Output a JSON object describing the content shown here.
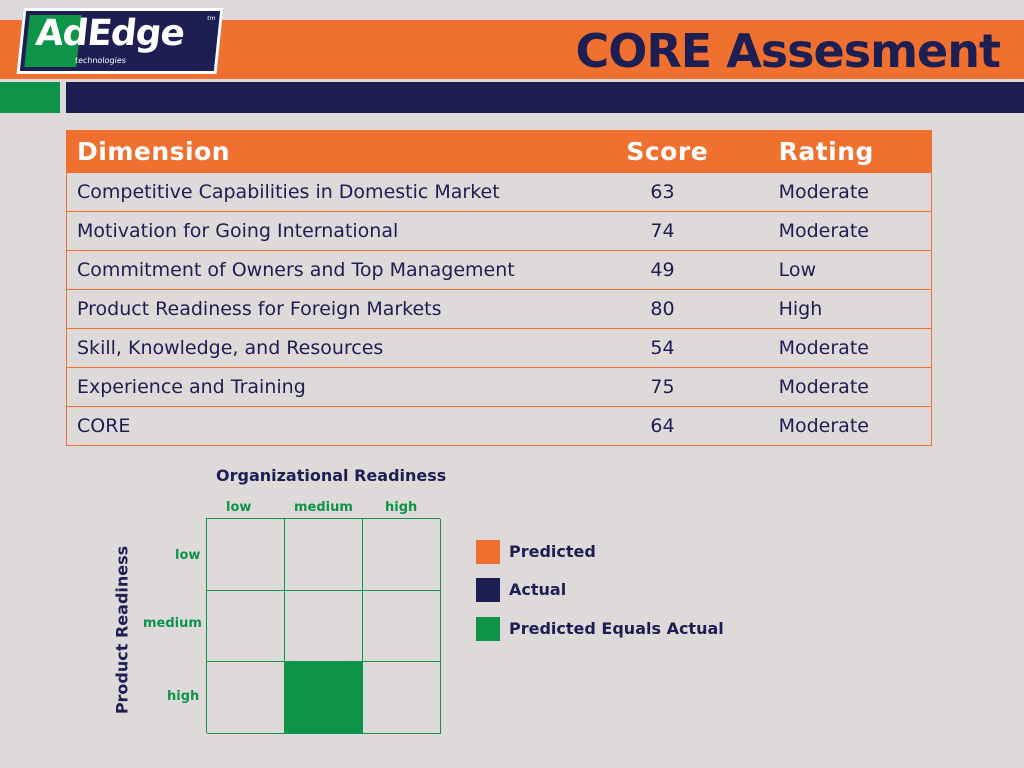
{
  "colors": {
    "background": "#dedad9",
    "orange": "#f07030",
    "navy": "#1d1e52",
    "green": "#0e9448"
  },
  "logo": {
    "name": "AdEdge",
    "subtitle": "technologies",
    "tm": "tm"
  },
  "header": {
    "title": "CORE Assesment"
  },
  "table": {
    "headers": [
      "Dimension",
      "Score",
      "Rating"
    ],
    "rows": [
      {
        "dimension": "Competitive Capabilities in Domestic Market",
        "score": "63",
        "rating": "Moderate"
      },
      {
        "dimension": "Motivation for Going International",
        "score": "74",
        "rating": "Moderate"
      },
      {
        "dimension": "Commitment of Owners and Top Management",
        "score": "49",
        "rating": "Low"
      },
      {
        "dimension": "Product Readiness for Foreign Markets",
        "score": "80",
        "rating": "High"
      },
      {
        "dimension": "Skill, Knowledge, and Resources",
        "score": "54",
        "rating": "Moderate"
      },
      {
        "dimension": "Experience and Training",
        "score": "75",
        "rating": "Moderate"
      },
      {
        "dimension": "CORE",
        "score": "64",
        "rating": "Moderate"
      }
    ]
  },
  "matrix": {
    "x_title": "Organizational Readiness",
    "y_title": "Product Readiness",
    "columns": [
      "low",
      "medium",
      "high"
    ],
    "rows": [
      "low",
      "medium",
      "high"
    ],
    "predicted_equals_actual": {
      "row": "high",
      "column": "medium"
    }
  },
  "legend": [
    {
      "label": "Predicted",
      "color": "#f07030"
    },
    {
      "label": "Actual",
      "color": "#1d1e52"
    },
    {
      "label": "Predicted Equals Actual",
      "color": "#0e9448"
    }
  ]
}
